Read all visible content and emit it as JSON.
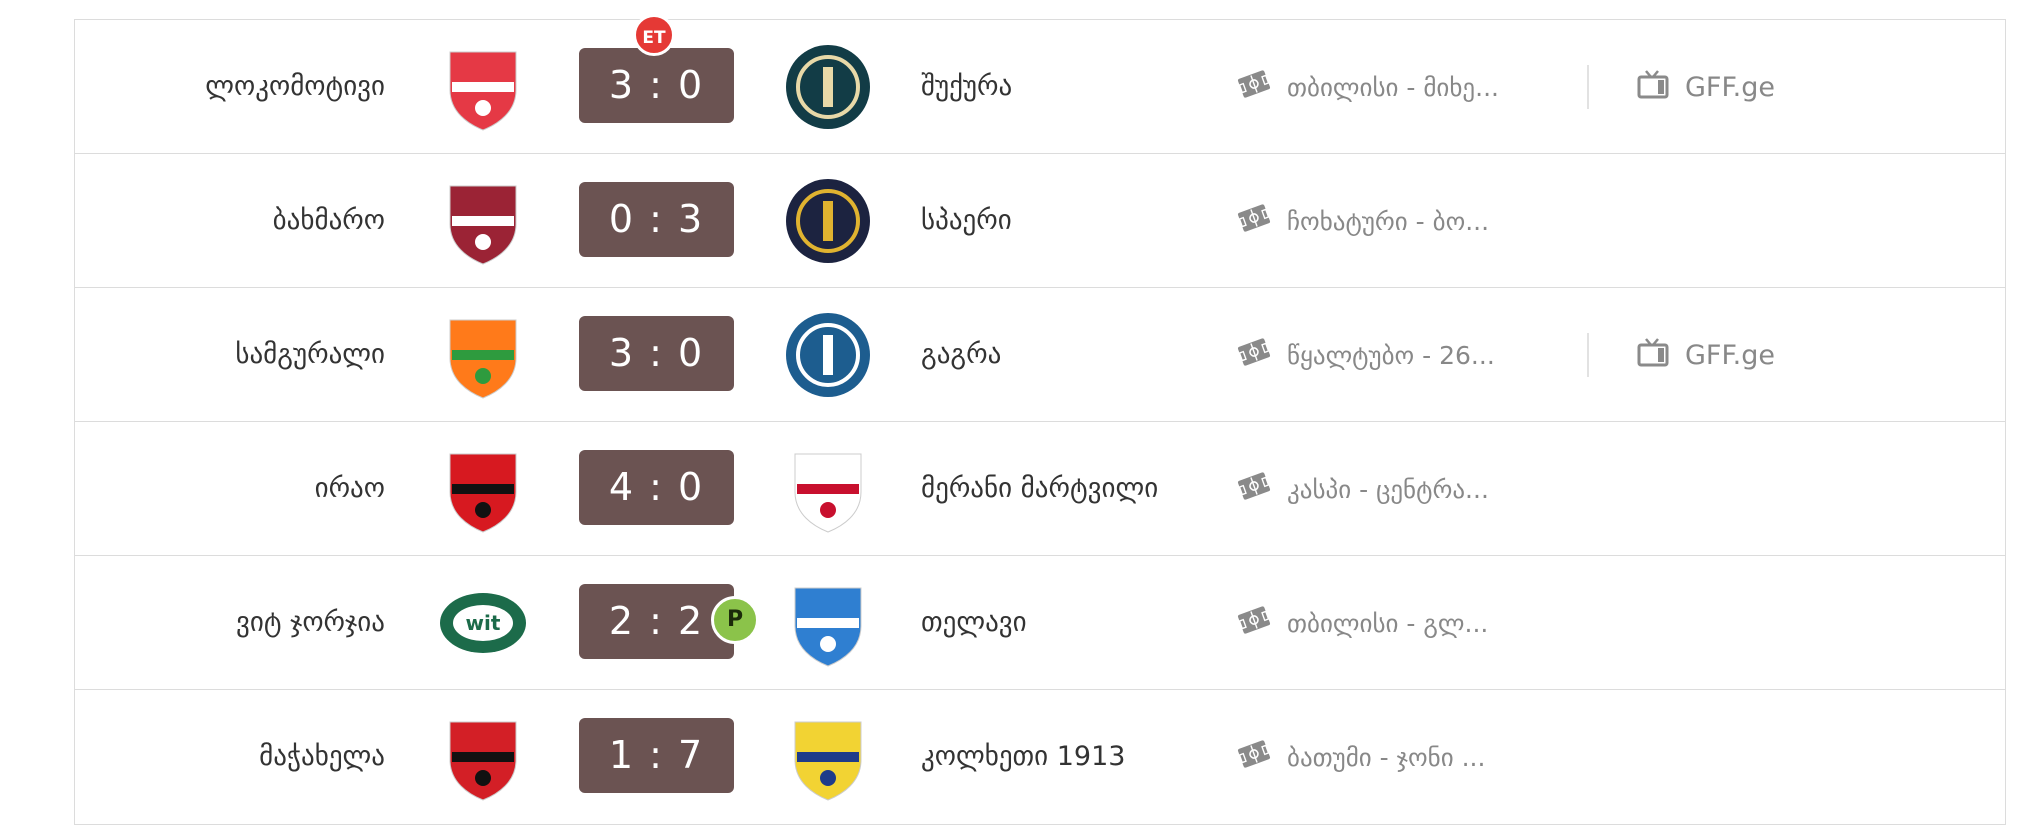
{
  "matches": [
    {
      "home": "ლოკომოტივი",
      "score": "3 : 0",
      "badge": "ET",
      "away": "შუქურა",
      "venue": "თბილისი - მიხე...",
      "broadcast": "GFF.ge",
      "home_colors": [
        "#e53945",
        "#ffffff"
      ],
      "away_colors": [
        "#123c46",
        "#e8d9a8"
      ]
    },
    {
      "home": "ბახმარო",
      "score": "0 : 3",
      "badge": "",
      "away": "სპაერი",
      "venue": "ჩოხატური - ბო...",
      "broadcast": "",
      "home_colors": [
        "#9b2335",
        "#ffffff"
      ],
      "away_colors": [
        "#1c2340",
        "#e0b330"
      ]
    },
    {
      "home": "სამგურალი",
      "score": "3 : 0",
      "badge": "",
      "away": "გაგრა",
      "venue": "წყალტუბო - 26...",
      "broadcast": "GFF.ge",
      "home_colors": [
        "#ff7a1a",
        "#2e9b3e"
      ],
      "away_colors": [
        "#1d5d8f",
        "#ffffff"
      ]
    },
    {
      "home": "ირაო",
      "score": "4 : 0",
      "badge": "",
      "away": "მერანი მარტვილი",
      "venue": "კასპი - ცენტრა...",
      "broadcast": "",
      "home_colors": [
        "#d71920",
        "#111111"
      ],
      "away_colors": [
        "#ffffff",
        "#c8102e"
      ]
    },
    {
      "home": "ვიტ ჯორჯია",
      "score": "2 : 2",
      "badge": "P",
      "away": "თელავი",
      "venue": "თბილისი - გლ...",
      "broadcast": "",
      "home_colors": [
        "#1c6b4a",
        "#ffffff"
      ],
      "away_colors": [
        "#2f7fd1",
        "#ffffff"
      ]
    },
    {
      "home": "მაჭახელა",
      "score": "1 : 7",
      "badge": "",
      "away": "კოლხეთი 1913",
      "venue": "ბათუმი - ჯონი ...",
      "broadcast": "",
      "home_colors": [
        "#d31f26",
        "#111111"
      ],
      "away_colors": [
        "#f2d333",
        "#1e3b8a"
      ]
    }
  ],
  "icons": {
    "venue": "stadium-ticket-icon",
    "broadcast": "tv-icon"
  }
}
